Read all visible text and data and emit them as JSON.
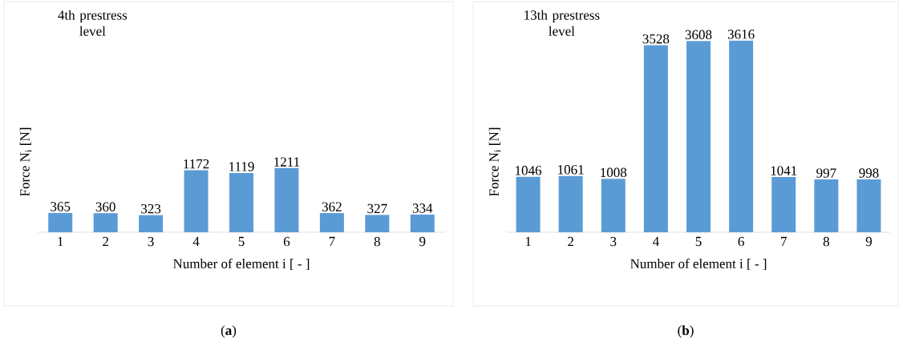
{
  "chart_data": [
    {
      "type": "bar",
      "title": "4th prestress level",
      "xlabel": "Number of element i [ - ]",
      "ylabel": "Force N$_{i}$ [N]",
      "categories": [
        "1",
        "2",
        "3",
        "4",
        "5",
        "6",
        "7",
        "8",
        "9"
      ],
      "values": [
        365,
        360,
        323,
        1172,
        1119,
        1211,
        362,
        327,
        334
      ],
      "color": "#5b9bd5",
      "tick_labels": "x",
      "data_labels": true,
      "annotations": [
        "(**a**)"
      ]
    },
    {
      "type": "bar",
      "title": "13th prestress level",
      "xlabel": "Number of element i [ - ]",
      "ylabel": "Force N$_{i}$ [N]",
      "categories": [
        "1",
        "2",
        "3",
        "4",
        "5",
        "6",
        "7",
        "8",
        "9"
      ],
      "values": [
        1046,
        1061,
        1008,
        3528,
        3608,
        3616,
        1041,
        997,
        998
      ],
      "color": "#5b9bd5",
      "tick_labels": "x",
      "data_labels": true,
      "annotations": [
        "(**b**)"
      ]
    }
  ]
}
